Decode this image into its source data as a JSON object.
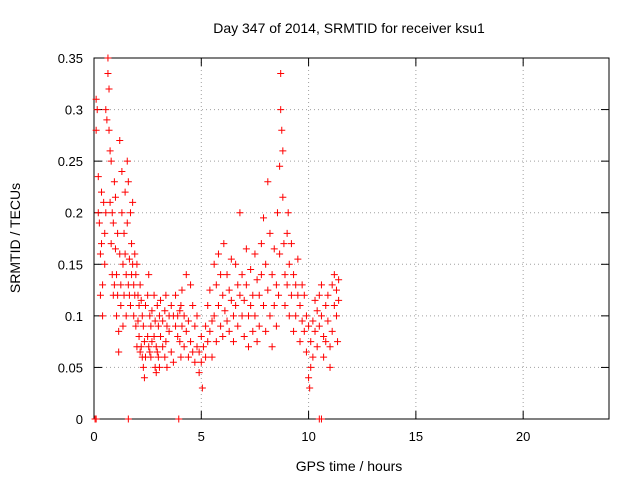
{
  "chart_data": {
    "type": "scatter",
    "title": "Day 347 of 2014, SRMTID for receiver ksu1",
    "xlabel": "GPS time / hours",
    "ylabel": "SRMTID / TECUs",
    "xlim": [
      0,
      24
    ],
    "ylim": [
      0,
      0.35
    ],
    "x_ticks": [
      0,
      5,
      10,
      15,
      20
    ],
    "x_tick_labels": [
      "0",
      "5",
      "10",
      "15",
      "20"
    ],
    "y_ticks": [
      0,
      0.05,
      0.1,
      0.15,
      0.2,
      0.25,
      0.3,
      0.35
    ],
    "y_tick_labels": [
      "0",
      "0.05",
      "0.1",
      "0.15",
      "0.2",
      "0.25",
      "0.3",
      "0.35"
    ],
    "grid": true,
    "marker": "+",
    "color": "#ff0000",
    "series": [
      {
        "name": "SRMTID",
        "points": [
          [
            0.05,
            0.0
          ],
          [
            0.1,
            0.0
          ],
          [
            1.6,
            0.0
          ],
          [
            3.95,
            0.0
          ],
          [
            10.5,
            0.0
          ],
          [
            10.6,
            0.0
          ],
          [
            0.1,
            0.31
          ],
          [
            0.1,
            0.28
          ],
          [
            0.15,
            0.3
          ],
          [
            0.2,
            0.235
          ],
          [
            0.2,
            0.2
          ],
          [
            0.25,
            0.19
          ],
          [
            0.3,
            0.16
          ],
          [
            0.3,
            0.12
          ],
          [
            0.35,
            0.22
          ],
          [
            0.35,
            0.17
          ],
          [
            0.4,
            0.13
          ],
          [
            0.4,
            0.1
          ],
          [
            0.45,
            0.21
          ],
          [
            0.5,
            0.15
          ],
          [
            0.5,
            0.18
          ],
          [
            0.55,
            0.2
          ],
          [
            0.55,
            0.3
          ],
          [
            0.6,
            0.29
          ],
          [
            0.65,
            0.35
          ],
          [
            0.65,
            0.335
          ],
          [
            0.7,
            0.32
          ],
          [
            0.7,
            0.28
          ],
          [
            0.75,
            0.26
          ],
          [
            0.75,
            0.21
          ],
          [
            0.8,
            0.25
          ],
          [
            0.8,
            0.17
          ],
          [
            0.85,
            0.2
          ],
          [
            0.85,
            0.14
          ],
          [
            0.9,
            0.19
          ],
          [
            0.9,
            0.12
          ],
          [
            0.95,
            0.23
          ],
          [
            0.95,
            0.13
          ],
          [
            1.0,
            0.165
          ],
          [
            1.0,
            0.215
          ],
          [
            1.05,
            0.14
          ],
          [
            1.05,
            0.1
          ],
          [
            1.1,
            0.18
          ],
          [
            1.1,
            0.12
          ],
          [
            1.15,
            0.085
          ],
          [
            1.15,
            0.065
          ],
          [
            1.2,
            0.27
          ],
          [
            1.2,
            0.16
          ],
          [
            1.25,
            0.13
          ],
          [
            1.25,
            0.11
          ],
          [
            1.3,
            0.24
          ],
          [
            1.3,
            0.2
          ],
          [
            1.35,
            0.15
          ],
          [
            1.35,
            0.09
          ],
          [
            1.4,
            0.18
          ],
          [
            1.4,
            0.12
          ],
          [
            1.45,
            0.22
          ],
          [
            1.45,
            0.16
          ],
          [
            1.5,
            0.14
          ],
          [
            1.5,
            0.1
          ],
          [
            1.55,
            0.25
          ],
          [
            1.55,
            0.19
          ],
          [
            1.6,
            0.23
          ],
          [
            1.6,
            0.13
          ],
          [
            1.65,
            0.12
          ],
          [
            1.65,
            0.155
          ],
          [
            1.7,
            0.2
          ],
          [
            1.7,
            0.11
          ],
          [
            1.75,
            0.17
          ],
          [
            1.75,
            0.14
          ],
          [
            1.8,
            0.21
          ],
          [
            1.8,
            0.15
          ],
          [
            1.85,
            0.13
          ],
          [
            1.85,
            0.1
          ],
          [
            1.9,
            0.16
          ],
          [
            1.9,
            0.12
          ],
          [
            1.95,
            0.14
          ],
          [
            1.95,
            0.09
          ],
          [
            2.0,
            0.15
          ],
          [
            2.0,
            0.07
          ],
          [
            2.05,
            0.12
          ],
          [
            2.05,
            0.095
          ],
          [
            2.1,
            0.11
          ],
          [
            2.1,
            0.08
          ],
          [
            2.15,
            0.065
          ],
          [
            2.15,
            0.13
          ],
          [
            2.2,
            0.115
          ],
          [
            2.2,
            0.07
          ],
          [
            2.25,
            0.06
          ],
          [
            2.25,
            0.1
          ],
          [
            2.3,
            0.09
          ],
          [
            2.3,
            0.05
          ],
          [
            2.35,
            0.075
          ],
          [
            2.35,
            0.04
          ],
          [
            2.4,
            0.11
          ],
          [
            2.4,
            0.06
          ],
          [
            2.5,
            0.12
          ],
          [
            2.5,
            0.08
          ],
          [
            2.55,
            0.14
          ],
          [
            2.55,
            0.07
          ],
          [
            2.6,
            0.1
          ],
          [
            2.6,
            0.065
          ],
          [
            2.65,
            0.09
          ],
          [
            2.65,
            0.06
          ],
          [
            2.7,
            0.105
          ],
          [
            2.7,
            0.075
          ],
          [
            2.8,
            0.12
          ],
          [
            2.8,
            0.08
          ],
          [
            2.85,
            0.05
          ],
          [
            2.85,
            0.095
          ],
          [
            2.9,
            0.07
          ],
          [
            2.9,
            0.045
          ],
          [
            2.95,
            0.11
          ],
          [
            2.95,
            0.065
          ],
          [
            3.0,
            0.09
          ],
          [
            3.0,
            0.06
          ],
          [
            3.05,
            0.1
          ],
          [
            3.05,
            0.05
          ],
          [
            3.1,
            0.08
          ],
          [
            3.1,
            0.115
          ],
          [
            3.2,
            0.07
          ],
          [
            3.2,
            0.095
          ],
          [
            3.3,
            0.105
          ],
          [
            3.3,
            0.06
          ],
          [
            3.35,
            0.12
          ],
          [
            3.35,
            0.075
          ],
          [
            3.4,
            0.09
          ],
          [
            3.4,
            0.05
          ],
          [
            3.5,
            0.1
          ],
          [
            3.5,
            0.085
          ],
          [
            3.6,
            0.065
          ],
          [
            3.6,
            0.11
          ],
          [
            3.7,
            0.1
          ],
          [
            3.7,
            0.055
          ],
          [
            3.8,
            0.09
          ],
          [
            3.8,
            0.12
          ],
          [
            3.9,
            0.08
          ],
          [
            3.9,
            0.1
          ],
          [
            4.0,
            0.075
          ],
          [
            4.0,
            0.105
          ],
          [
            4.05,
            0.11
          ],
          [
            4.05,
            0.06
          ],
          [
            4.1,
            0.125
          ],
          [
            4.1,
            0.09
          ],
          [
            4.2,
            0.07
          ],
          [
            4.2,
            0.1
          ],
          [
            4.3,
            0.14
          ],
          [
            4.3,
            0.085
          ],
          [
            4.4,
            0.095
          ],
          [
            4.4,
            0.06
          ],
          [
            4.5,
            0.13
          ],
          [
            4.5,
            0.075
          ],
          [
            4.6,
            0.11
          ],
          [
            4.6,
            0.065
          ],
          [
            4.7,
            0.09
          ],
          [
            4.7,
            0.055
          ],
          [
            4.8,
            0.1
          ],
          [
            4.8,
            0.07
          ],
          [
            4.9,
            0.065
          ],
          [
            4.9,
            0.045
          ],
          [
            5.0,
            0.08
          ],
          [
            5.0,
            0.055
          ],
          [
            5.05,
            0.03
          ],
          [
            5.1,
            0.07
          ],
          [
            5.2,
            0.09
          ],
          [
            5.2,
            0.06
          ],
          [
            5.3,
            0.11
          ],
          [
            5.3,
            0.075
          ],
          [
            5.4,
            0.125
          ],
          [
            5.4,
            0.085
          ],
          [
            5.5,
            0.095
          ],
          [
            5.5,
            0.06
          ],
          [
            5.6,
            0.15
          ],
          [
            5.6,
            0.1
          ],
          [
            5.7,
            0.13
          ],
          [
            5.7,
            0.075
          ],
          [
            5.8,
            0.11
          ],
          [
            5.8,
            0.16
          ],
          [
            5.9,
            0.09
          ],
          [
            5.9,
            0.14
          ],
          [
            6.0,
            0.12
          ],
          [
            6.0,
            0.08
          ],
          [
            6.05,
            0.17
          ],
          [
            6.1,
            0.105
          ],
          [
            6.2,
            0.14
          ],
          [
            6.2,
            0.095
          ],
          [
            6.3,
            0.125
          ],
          [
            6.3,
            0.085
          ],
          [
            6.4,
            0.115
          ],
          [
            6.4,
            0.155
          ],
          [
            6.5,
            0.1
          ],
          [
            6.5,
            0.075
          ],
          [
            6.6,
            0.15
          ],
          [
            6.6,
            0.11
          ],
          [
            6.7,
            0.13
          ],
          [
            6.7,
            0.09
          ],
          [
            6.8,
            0.12
          ],
          [
            6.8,
            0.2
          ],
          [
            6.9,
            0.1
          ],
          [
            6.9,
            0.14
          ],
          [
            7.0,
            0.115
          ],
          [
            7.0,
            0.08
          ],
          [
            7.1,
            0.13
          ],
          [
            7.1,
            0.165
          ],
          [
            7.2,
            0.1
          ],
          [
            7.2,
            0.07
          ],
          [
            7.3,
            0.145
          ],
          [
            7.3,
            0.11
          ],
          [
            7.4,
            0.12
          ],
          [
            7.4,
            0.085
          ],
          [
            7.5,
            0.16
          ],
          [
            7.5,
            0.1
          ],
          [
            7.6,
            0.135
          ],
          [
            7.6,
            0.075
          ],
          [
            7.7,
            0.12
          ],
          [
            7.7,
            0.09
          ],
          [
            7.8,
            0.17
          ],
          [
            7.8,
            0.14
          ],
          [
            7.9,
            0.195
          ],
          [
            7.9,
            0.11
          ],
          [
            8.0,
            0.15
          ],
          [
            8.0,
            0.085
          ],
          [
            8.1,
            0.23
          ],
          [
            8.1,
            0.125
          ],
          [
            8.2,
            0.18
          ],
          [
            8.2,
            0.1
          ],
          [
            8.3,
            0.14
          ],
          [
            8.3,
            0.07
          ],
          [
            8.4,
            0.165
          ],
          [
            8.4,
            0.11
          ],
          [
            8.5,
            0.13
          ],
          [
            8.5,
            0.09
          ],
          [
            8.55,
            0.2
          ],
          [
            8.6,
            0.12
          ],
          [
            8.65,
            0.245
          ],
          [
            8.65,
            0.16
          ],
          [
            8.7,
            0.335
          ],
          [
            8.7,
            0.3
          ],
          [
            8.75,
            0.28
          ],
          [
            8.8,
            0.26
          ],
          [
            8.8,
            0.215
          ],
          [
            8.85,
            0.17
          ],
          [
            8.9,
            0.14
          ],
          [
            8.9,
            0.11
          ],
          [
            9.0,
            0.18
          ],
          [
            9.0,
            0.13
          ],
          [
            9.05,
            0.2
          ],
          [
            9.1,
            0.15
          ],
          [
            9.1,
            0.1
          ],
          [
            9.2,
            0.17
          ],
          [
            9.2,
            0.12
          ],
          [
            9.3,
            0.14
          ],
          [
            9.3,
            0.085
          ],
          [
            9.4,
            0.13
          ],
          [
            9.4,
            0.1
          ],
          [
            9.5,
            0.155
          ],
          [
            9.5,
            0.12
          ],
          [
            9.6,
            0.11
          ],
          [
            9.6,
            0.075
          ],
          [
            9.7,
            0.13
          ],
          [
            9.7,
            0.095
          ],
          [
            9.8,
            0.12
          ],
          [
            9.8,
            0.085
          ],
          [
            9.9,
            0.1
          ],
          [
            9.9,
            0.065
          ],
          [
            10.0,
            0.09
          ],
          [
            10.0,
            0.04
          ],
          [
            10.05,
            0.03
          ],
          [
            10.1,
            0.075
          ],
          [
            10.1,
            0.05
          ],
          [
            10.2,
            0.095
          ],
          [
            10.2,
            0.06
          ],
          [
            10.3,
            0.115
          ],
          [
            10.3,
            0.085
          ],
          [
            10.4,
            0.105
          ],
          [
            10.4,
            0.07
          ],
          [
            10.5,
            0.12
          ],
          [
            10.5,
            0.09
          ],
          [
            10.6,
            0.13
          ],
          [
            10.6,
            0.1
          ],
          [
            10.7,
            0.08
          ],
          [
            10.7,
            0.06
          ],
          [
            10.8,
            0.11
          ],
          [
            10.8,
            0.075
          ],
          [
            10.9,
            0.095
          ],
          [
            10.9,
            0.12
          ],
          [
            11.0,
            0.07
          ],
          [
            11.0,
            0.05
          ],
          [
            11.1,
            0.13
          ],
          [
            11.1,
            0.085
          ],
          [
            11.2,
            0.11
          ],
          [
            11.2,
            0.14
          ],
          [
            11.3,
            0.1
          ],
          [
            11.3,
            0.125
          ],
          [
            11.35,
            0.075
          ],
          [
            11.4,
            0.115
          ],
          [
            11.4,
            0.135
          ]
        ]
      }
    ]
  }
}
